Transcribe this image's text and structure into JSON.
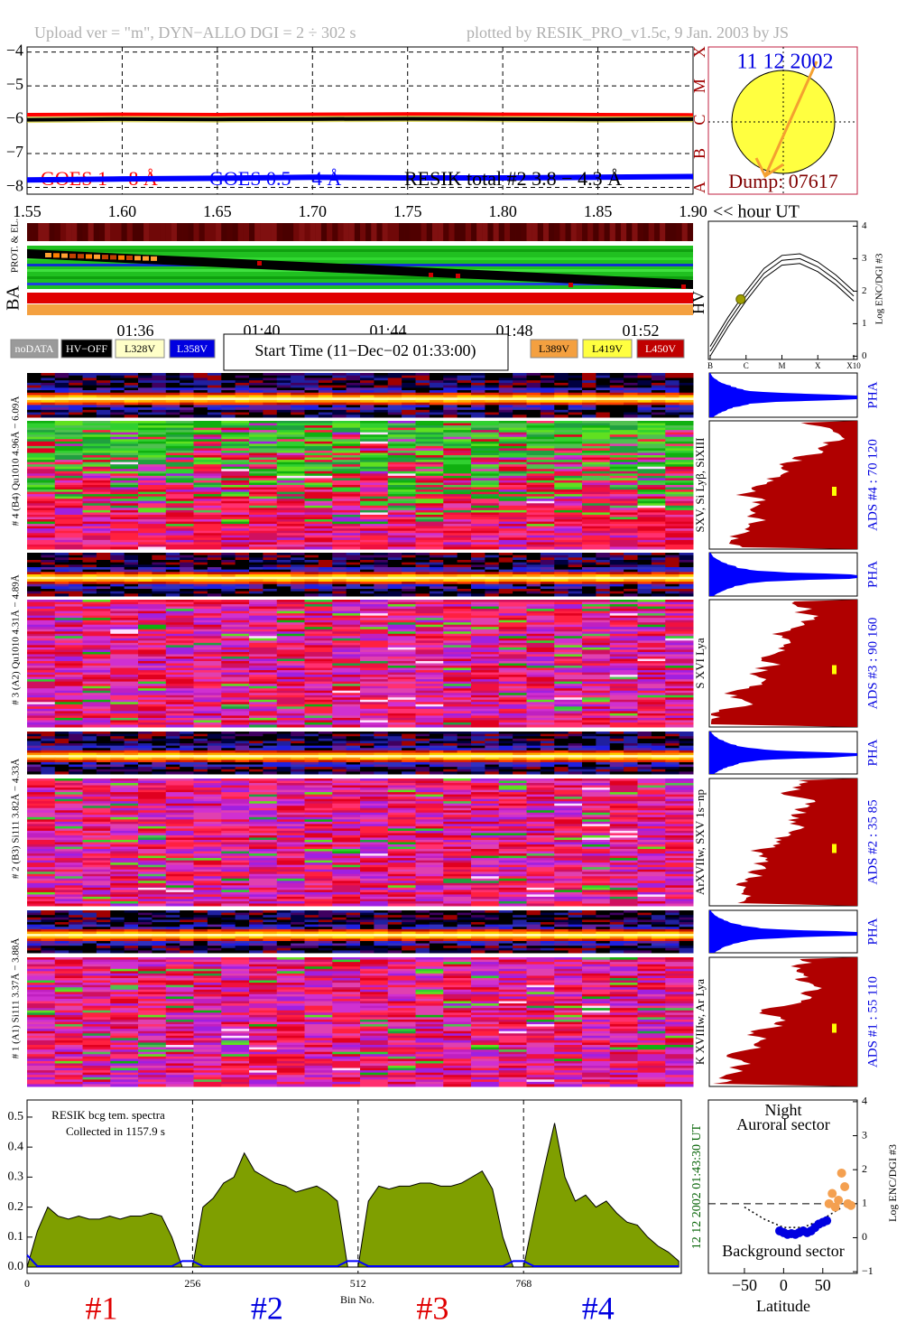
{
  "header": {
    "left": "Upload ver = \"m\", DYN−ALLO DGI =  2 ÷ 302 s",
    "right": "plotted by RESIK_PRO_v1.5c, 9 Jan. 2003 by JS"
  },
  "sun": {
    "date": "11 12 2002",
    "dump": "Dump: 07617"
  },
  "ba_panel": {
    "ba": "BA",
    "prot": "PROT. & EL."
  },
  "time_axis": [
    "01:36",
    "01:40",
    "01:44",
    "01:48",
    "01:52"
  ],
  "legend": [
    {
      "label": "noDATA",
      "color": "#9a9a9a",
      "text_color": "#ffffff"
    },
    {
      "label": "HV−OFF",
      "color": "#000000",
      "text_color": "#ffffff"
    },
    {
      "label": "L328V",
      "color": "#ffffc8",
      "text_color": "#000000"
    },
    {
      "label": "L358V",
      "color": "#0000e0",
      "text_color": "#ffffff"
    },
    {
      "label": "L389V",
      "color": "#f4a040",
      "text_color": "#000000"
    },
    {
      "label": "L419V",
      "color": "#ffff40",
      "text_color": "#000000"
    },
    {
      "label": "L450V",
      "color": "#c00000",
      "text_color": "#ffffff"
    }
  ],
  "start_time": "Start Time (11−Dec−02 01:33:00)",
  "detectors": [
    {
      "range_label": "# 4 (B4) Qu1010 4.96Å − 6.09Å",
      "lines": "SXV, Si Lyβ, SiXIII",
      "ads": "ADS #4 :   70 120",
      "pha": "PHA"
    },
    {
      "range_label": "# 3 (A2) Qu1010 4.31Å − 4.89Å",
      "lines": "S XVI Lya",
      "ads": "ADS #3 :   90 160",
      "pha": "PHA"
    },
    {
      "range_label": "# 2 (B3) Si111 3.82Å − 4.33Å",
      "lines": "ArXVIIw, SXV 1s−np",
      "ads": "ADS #2 :   35  85",
      "pha": "PHA"
    },
    {
      "range_label": "# 1 (A1) Si111 3.37Å − 3.88Å",
      "lines": "K XVIIIw, Ar Lya",
      "ads": "ADS #1 :   55 110",
      "pha": "PHA"
    }
  ],
  "chart_data": [
    {
      "type": "line",
      "x": [
        1.55,
        1.6,
        1.65,
        1.7,
        1.75,
        1.8,
        1.85,
        1.9
      ],
      "xlim": [
        1.55,
        1.9
      ],
      "xticks": [
        1.55,
        {
          "value": 1.6,
          "label": "1.60"
        },
        1.65,
        {
          "value": 1.7,
          "label": "1.70"
        },
        1.75,
        {
          "value": 1.8,
          "label": "1.80"
        },
        1.85,
        {
          "value": 1.9,
          "label": "1.90"
        }
      ],
      "xlabel": "<< hour UT",
      "ylim": [
        -8.2,
        -3.85
      ],
      "yticks": [
        {
          "value": -4,
          "label": "−4"
        },
        {
          "value": -5,
          "label": "−5"
        },
        {
          "value": -6,
          "label": "−6"
        },
        {
          "value": -7,
          "label": "−7"
        },
        {
          "value": -8,
          "label": "−8"
        }
      ],
      "grid": true,
      "class_letters": [
        "A",
        "B",
        "C",
        "M",
        "X"
      ],
      "class_color": "#a00000",
      "series": [
        {
          "name": "GOES 1 − 8 Å",
          "color": "#ff0000",
          "values": [
            -5.85,
            -5.84,
            -5.85,
            -5.84,
            -5.83,
            -5.84,
            -5.85,
            -5.86
          ]
        },
        {
          "name": "GOES 0.5 − 4 Å",
          "color": "#0000ff",
          "values": [
            -7.78,
            -7.75,
            -7.73,
            -7.7,
            -7.72,
            -7.72,
            -7.7,
            -7.68
          ]
        },
        {
          "name": "RESIK total #2  3.8 − 4.3 Å",
          "color": "#000000",
          "values": [
            -6.0,
            -5.98,
            -5.99,
            -5.98,
            -5.97,
            -5.98,
            -5.99,
            -5.98
          ]
        }
      ]
    },
    {
      "type": "line",
      "label": "HV",
      "x": [
        0,
        0.5,
        1,
        1.5,
        2,
        2.5,
        3,
        3.5,
        4
      ],
      "xlim": [
        -0.05,
        4.1
      ],
      "xticks": [
        {
          "value": 0,
          "label": "B"
        },
        {
          "value": 1,
          "label": "C"
        },
        {
          "value": 2,
          "label": "M"
        },
        {
          "value": 3,
          "label": "X"
        },
        {
          "value": 4,
          "label": "X10"
        }
      ],
      "ylim": [
        -0.1,
        4.15
      ],
      "yticks": [
        0,
        1,
        2,
        3,
        4
      ],
      "ylabel": "Log ENC/DGI #3",
      "series": [
        {
          "color": "#000000",
          "values": [
            0.3,
            1.2,
            2.0,
            2.7,
            3.1,
            3.15,
            2.9,
            2.5,
            2.0
          ]
        },
        {
          "color": "#000000",
          "values": [
            0.15,
            1.05,
            1.85,
            2.55,
            2.95,
            3.0,
            2.75,
            2.35,
            1.85
          ]
        },
        {
          "color": "#000000",
          "values": [
            0.0,
            0.9,
            1.7,
            2.4,
            2.8,
            2.85,
            2.6,
            2.2,
            1.7
          ]
        }
      ],
      "point": {
        "x": 0.85,
        "value": 1.75,
        "color": "#a0a000"
      }
    },
    {
      "type": "area",
      "x": [
        0,
        16,
        32,
        48,
        64,
        80,
        96,
        112,
        128,
        144,
        160,
        176,
        192,
        208,
        224,
        240,
        256,
        272,
        288,
        304,
        320,
        336,
        352,
        368,
        384,
        400,
        416,
        432,
        448,
        464,
        480,
        496,
        512,
        528,
        544,
        560,
        576,
        592,
        608,
        624,
        640,
        656,
        672,
        688,
        704,
        720,
        736,
        752,
        768,
        784,
        800,
        816,
        832,
        848,
        864,
        880,
        896,
        912,
        928,
        944,
        960,
        976,
        992,
        1008
      ],
      "xlim": [
        0,
        1012
      ],
      "xticks": [
        0,
        256,
        512,
        768
      ],
      "xlabel": "Bin No.",
      "ylim": [
        -0.021,
        0.557
      ],
      "yticks": [
        {
          "value": 0,
          "label": "0.0"
        },
        0.1,
        0.2,
        0.3,
        0.4,
        0.5
      ],
      "grid": true,
      "notes": [
        "RESIK bcg tem. spectra",
        "Collected in  1157.9 s"
      ],
      "date_label": "12 12 2002  01:43:30 UT",
      "sections": [
        {
          "label": "#1",
          "color": "#e00000"
        },
        {
          "label": "#2",
          "color": "#0000e0"
        },
        {
          "label": "#3",
          "color": "#e00000"
        },
        {
          "label": "#4",
          "color": "#0000e0"
        }
      ],
      "series": [
        {
          "color": "#7f9f00",
          "values": [
            0.0,
            0.12,
            0.2,
            0.17,
            0.16,
            0.17,
            0.16,
            0.16,
            0.17,
            0.16,
            0.17,
            0.17,
            0.18,
            0.17,
            0.1,
            0.0,
            0.0,
            0.2,
            0.23,
            0.28,
            0.3,
            0.38,
            0.32,
            0.3,
            0.28,
            0.27,
            0.25,
            0.26,
            0.27,
            0.25,
            0.22,
            0.0,
            0.0,
            0.22,
            0.27,
            0.26,
            0.27,
            0.27,
            0.28,
            0.28,
            0.27,
            0.27,
            0.28,
            0.3,
            0.32,
            0.26,
            0.1,
            0.0,
            0.0,
            0.17,
            0.33,
            0.48,
            0.3,
            0.22,
            0.24,
            0.2,
            0.22,
            0.18,
            0.15,
            0.14,
            0.1,
            0.07,
            0.05,
            0.02
          ]
        },
        {
          "color": "#0000ff",
          "values": [
            0.04,
            0.003,
            0.003,
            0.003,
            0.003,
            0.003,
            0.003,
            0.003,
            0.003,
            0.003,
            0.003,
            0.003,
            0.003,
            0.003,
            0.003,
            0.02,
            0.02,
            0.003,
            0.003,
            0.003,
            0.003,
            0.003,
            0.003,
            0.003,
            0.003,
            0.003,
            0.003,
            0.003,
            0.003,
            0.003,
            0.003,
            0.02,
            0.02,
            0.003,
            0.003,
            0.003,
            0.003,
            0.003,
            0.003,
            0.003,
            0.003,
            0.003,
            0.003,
            0.003,
            0.003,
            0.003,
            0.003,
            0.02,
            0.02,
            0.003,
            0.003,
            0.003,
            0.003,
            0.003,
            0.003,
            0.003,
            0.003,
            0.003,
            0.003,
            0.003,
            0.003,
            0.003,
            0.003,
            0.003
          ]
        }
      ]
    },
    {
      "type": "scatter",
      "xlim": [
        -96,
        94
      ],
      "xticks": [
        {
          "value": -50,
          "label": "−50"
        },
        0,
        50
      ],
      "xlabel": "Latitude",
      "ylim": [
        -1.05,
        4.05
      ],
      "yticks": [
        {
          "value": -1,
          "label": "−1"
        },
        0,
        1,
        2,
        3,
        4
      ],
      "ylabel": "Log ENC/DGI #3",
      "notes": [
        "Night",
        "Auroral sector",
        "Background sector"
      ],
      "hline": 1,
      "curve": {
        "x": [
          -50,
          -25,
          0,
          25,
          50,
          75
        ],
        "values": [
          0.9,
          0.55,
          0.3,
          0.3,
          0.55,
          0.9
        ]
      },
      "series": [
        {
          "color": "#0000e0",
          "x": [
            -5,
            0,
            5,
            10,
            15,
            20,
            25,
            30,
            35,
            40,
            45,
            50,
            55
          ],
          "values": [
            0.2,
            0.15,
            0.1,
            0.12,
            0.1,
            0.15,
            0.2,
            0.15,
            0.2,
            0.3,
            0.4,
            0.45,
            0.5
          ]
        },
        {
          "color": "#f4a050",
          "x": [
            58,
            62,
            66,
            70,
            74,
            78,
            82,
            86
          ],
          "values": [
            1.0,
            1.3,
            0.9,
            1.1,
            1.9,
            1.5,
            1.0,
            0.95
          ]
        }
      ]
    }
  ]
}
